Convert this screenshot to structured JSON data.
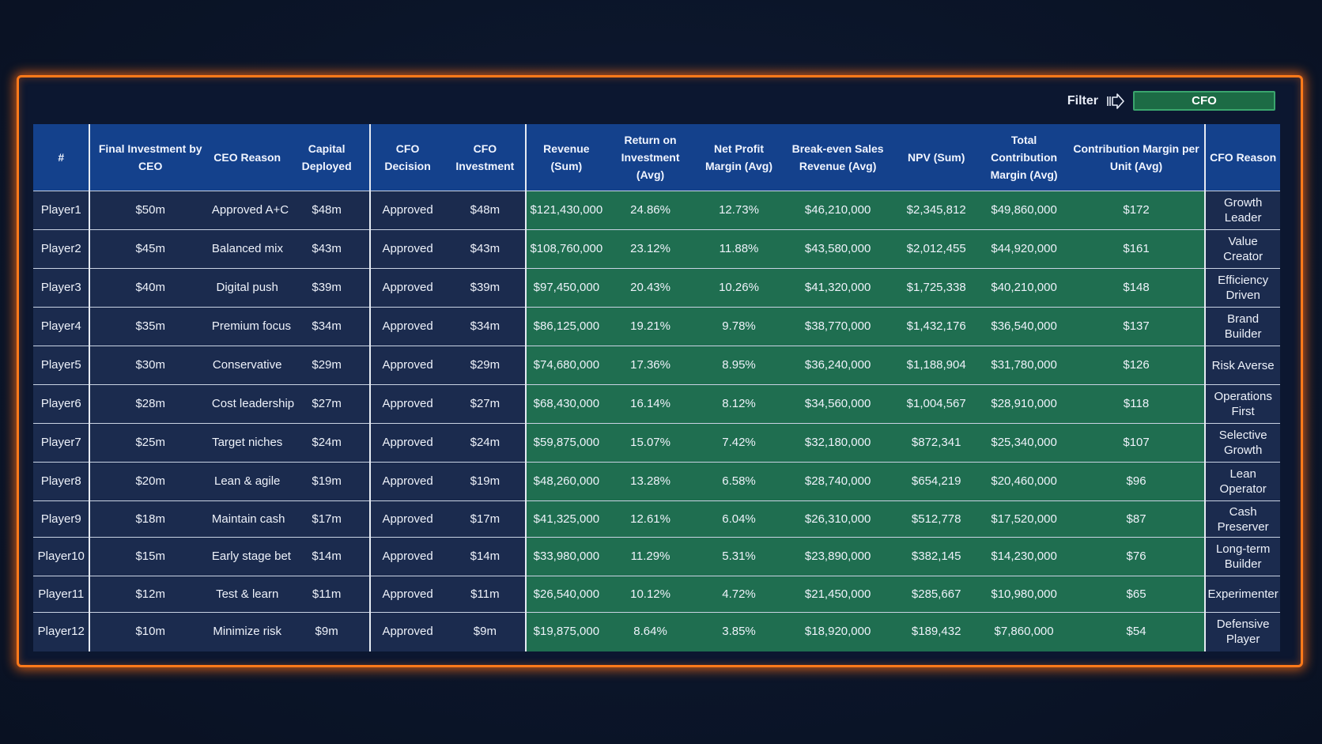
{
  "filter": {
    "label": "Filter",
    "icon": "arrow-right-icon",
    "value": "CFO"
  },
  "colors": {
    "frame": "#ff7a1a",
    "header": "#14418c",
    "navy_cell": "#1b2b4e",
    "green_cell": "#1f6e50",
    "filter_bg": "#1c6b45"
  },
  "columns": [
    "#",
    "Final Investment by CEO",
    "CEO Reason",
    "Capital Deployed",
    "CFO Decision",
    "CFO Investment",
    "Revenue (Sum)",
    "Return on Investment (Avg)",
    "Net Profit Margin (Avg)",
    "Break-even Sales Revenue (Avg)",
    "NPV (Sum)",
    "Total Contribution Margin (Avg)",
    "Contribution Margin per Unit (Avg)",
    "CFO Reason"
  ],
  "rows": [
    [
      "Player1",
      "$50m",
      "Approved A+C",
      "$48m",
      "Approved",
      "$48m",
      "$121,430,000",
      "24.86%",
      "12.73%",
      "$46,210,000",
      "$2,345,812",
      "$49,860,000",
      "$172",
      "Growth Leader"
    ],
    [
      "Player2",
      "$45m",
      "Balanced mix",
      "$43m",
      "Approved",
      "$43m",
      "$108,760,000",
      "23.12%",
      "11.88%",
      "$43,580,000",
      "$2,012,455",
      "$44,920,000",
      "$161",
      "Value Creator"
    ],
    [
      "Player3",
      "$40m",
      "Digital push",
      "$39m",
      "Approved",
      "$39m",
      "$97,450,000",
      "20.43%",
      "10.26%",
      "$41,320,000",
      "$1,725,338",
      "$40,210,000",
      "$148",
      "Efficiency Driven"
    ],
    [
      "Player4",
      "$35m",
      "Premium focus",
      "$34m",
      "Approved",
      "$34m",
      "$86,125,000",
      "19.21%",
      "9.78%",
      "$38,770,000",
      "$1,432,176",
      "$36,540,000",
      "$137",
      "Brand Builder"
    ],
    [
      "Player5",
      "$30m",
      "Conservative",
      "$29m",
      "Approved",
      "$29m",
      "$74,680,000",
      "17.36%",
      "8.95%",
      "$36,240,000",
      "$1,188,904",
      "$31,780,000",
      "$126",
      "Risk Averse"
    ],
    [
      "Player6",
      "$28m",
      "Cost leadership",
      "$27m",
      "Approved",
      "$27m",
      "$68,430,000",
      "16.14%",
      "8.12%",
      "$34,560,000",
      "$1,004,567",
      "$28,910,000",
      "$118",
      "Operations First"
    ],
    [
      "Player7",
      "$25m",
      "Target niches",
      "$24m",
      "Approved",
      "$24m",
      "$59,875,000",
      "15.07%",
      "7.42%",
      "$32,180,000",
      "$872,341",
      "$25,340,000",
      "$107",
      "Selective Growth"
    ],
    [
      "Player8",
      "$20m",
      "Lean & agile",
      "$19m",
      "Approved",
      "$19m",
      "$48,260,000",
      "13.28%",
      "6.58%",
      "$28,740,000",
      "$654,219",
      "$20,460,000",
      "$96",
      "Lean Operator"
    ],
    [
      "Player9",
      "$18m",
      "Maintain cash",
      "$17m",
      "Approved",
      "$17m",
      "$41,325,000",
      "12.61%",
      "6.04%",
      "$26,310,000",
      "$512,778",
      "$17,520,000",
      "$87",
      "Cash Preserver"
    ],
    [
      "Player10",
      "$15m",
      "Early stage bet",
      "$14m",
      "Approved",
      "$14m",
      "$33,980,000",
      "11.29%",
      "5.31%",
      "$23,890,000",
      "$382,145",
      "$14,230,000",
      "$76",
      "Long-term Builder"
    ],
    [
      "Player11",
      "$12m",
      "Test & learn",
      "$11m",
      "Approved",
      "$11m",
      "$26,540,000",
      "10.12%",
      "4.72%",
      "$21,450,000",
      "$285,667",
      "$10,980,000",
      "$65",
      "Experimenter"
    ],
    [
      "Player12",
      "$10m",
      "Minimize risk",
      "$9m",
      "Approved",
      "$9m",
      "$19,875,000",
      "8.64%",
      "3.85%",
      "$18,920,000",
      "$189,432",
      "$7,860,000",
      "$54",
      "Defensive Player"
    ]
  ]
}
